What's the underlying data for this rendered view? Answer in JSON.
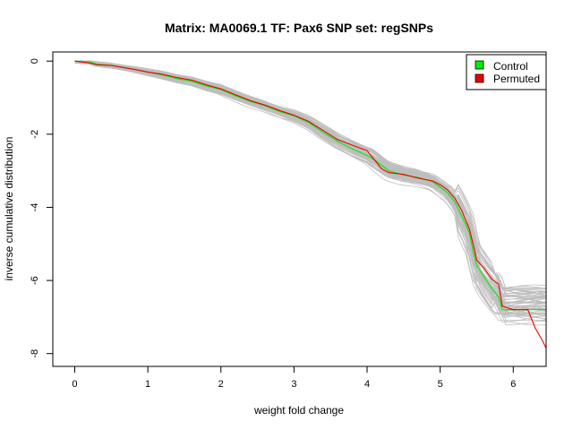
{
  "chart_data": {
    "type": "line",
    "title": "Matrix: MA0069.1 TF: Pax6 SNP set: regSNPs",
    "xlabel": "weight fold change",
    "ylabel": "inverse cumulative distribution",
    "xlim": [
      -0.3,
      6.45
    ],
    "ylim": [
      -8.35,
      0.25
    ],
    "x_ticks": [
      0,
      1,
      2,
      3,
      4,
      5,
      6
    ],
    "y_ticks": [
      0,
      -2,
      -4,
      -6,
      -8
    ],
    "grid": false,
    "legend": {
      "position": "top-right",
      "entries": [
        "Control",
        "Permuted"
      ]
    },
    "colors": {
      "control": "#00ee00",
      "permuted": "#ee0000",
      "background_runs": "#bebebe"
    },
    "series": [
      {
        "name": "Control",
        "x": [
          0,
          0.2,
          0.3,
          0.5,
          0.8,
          1.0,
          1.2,
          1.4,
          1.6,
          1.8,
          2.0,
          2.2,
          2.4,
          2.6,
          2.8,
          3.0,
          3.2,
          3.4,
          3.6,
          3.8,
          4.0,
          4.1,
          4.2,
          4.3,
          4.5,
          4.7,
          4.9,
          5.0,
          5.1,
          5.2,
          5.3,
          5.4,
          5.45,
          5.5,
          5.6,
          5.7,
          5.8,
          5.85,
          6.0,
          6.1,
          6.3,
          6.45
        ],
        "y": [
          0,
          -0.02,
          -0.08,
          -0.12,
          -0.22,
          -0.3,
          -0.38,
          -0.48,
          -0.55,
          -0.68,
          -0.78,
          -0.95,
          -1.1,
          -1.22,
          -1.38,
          -1.5,
          -1.68,
          -1.95,
          -2.2,
          -2.4,
          -2.58,
          -2.7,
          -2.85,
          -3.0,
          -3.12,
          -3.18,
          -3.3,
          -3.45,
          -3.6,
          -3.85,
          -4.25,
          -4.7,
          -5.2,
          -5.6,
          -5.9,
          -6.2,
          -6.45,
          -6.8,
          -6.8,
          -6.8,
          -6.8,
          -6.8
        ]
      },
      {
        "name": "Permuted",
        "x": [
          0,
          0.2,
          0.3,
          0.5,
          0.8,
          1.0,
          1.2,
          1.4,
          1.6,
          1.8,
          2.0,
          2.2,
          2.4,
          2.6,
          2.8,
          3.0,
          3.2,
          3.4,
          3.6,
          3.8,
          4.0,
          4.1,
          4.2,
          4.3,
          4.5,
          4.7,
          4.9,
          5.0,
          5.1,
          5.2,
          5.3,
          5.4,
          5.45,
          5.5,
          5.6,
          5.7,
          5.8,
          5.85,
          6.0,
          6.2,
          6.3,
          6.4,
          6.45
        ],
        "y": [
          0,
          -0.05,
          -0.1,
          -0.12,
          -0.22,
          -0.3,
          -0.36,
          -0.45,
          -0.52,
          -0.65,
          -0.76,
          -0.92,
          -1.08,
          -1.2,
          -1.35,
          -1.48,
          -1.65,
          -1.9,
          -2.15,
          -2.3,
          -2.45,
          -2.7,
          -2.95,
          -3.05,
          -3.1,
          -3.2,
          -3.28,
          -3.38,
          -3.52,
          -3.75,
          -4.1,
          -4.6,
          -5.0,
          -5.45,
          -5.65,
          -5.95,
          -6.1,
          -6.7,
          -6.8,
          -6.8,
          -7.3,
          -7.65,
          -7.85
        ]
      }
    ]
  }
}
